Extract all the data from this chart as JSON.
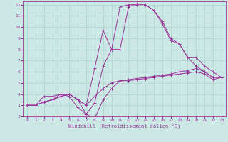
{
  "xlabel": "Windchill (Refroidissement éolien,°C)",
  "bg_color": "#cce8e4",
  "line_color": "#993399",
  "grid_color": "#aad4d0",
  "xlim": [
    -0.5,
    23.5
  ],
  "ylim": [
    2,
    12.3
  ],
  "xticks": [
    0,
    1,
    2,
    3,
    4,
    5,
    6,
    7,
    8,
    9,
    10,
    11,
    12,
    13,
    14,
    15,
    16,
    17,
    18,
    19,
    20,
    21,
    22,
    23
  ],
  "yticks": [
    2,
    3,
    4,
    5,
    6,
    7,
    8,
    9,
    10,
    11,
    12
  ],
  "lines": [
    {
      "x": [
        0,
        1,
        2,
        3,
        4,
        5,
        6,
        7,
        8,
        9,
        10,
        11,
        12,
        13,
        14,
        15,
        16,
        17,
        18,
        19,
        20,
        21,
        22,
        23
      ],
      "y": [
        3,
        3,
        3.8,
        3.8,
        4,
        3.8,
        2.8,
        2.2,
        3.2,
        6.5,
        8,
        8,
        11.8,
        12.1,
        12,
        11.5,
        10.5,
        9.0,
        8.5,
        7.3,
        6.5,
        6.0,
        5.5,
        5.5
      ]
    },
    {
      "x": [
        0,
        1,
        2,
        3,
        4,
        5,
        6,
        7,
        8,
        9,
        10,
        11,
        12,
        13,
        14,
        15,
        16,
        17,
        18,
        19,
        20,
        21,
        22,
        23
      ],
      "y": [
        3,
        3,
        3.3,
        3.5,
        3.8,
        4.0,
        3.5,
        3.0,
        3.8,
        4.5,
        5.0,
        5.2,
        5.3,
        5.4,
        5.5,
        5.6,
        5.7,
        5.8,
        6.0,
        6.1,
        6.3,
        6.0,
        5.5,
        5.5
      ]
    },
    {
      "x": [
        0,
        1,
        2,
        3,
        4,
        5,
        6,
        7,
        8,
        9,
        10,
        11,
        12,
        13,
        14,
        15,
        16,
        17,
        18,
        19,
        20,
        21,
        22,
        23
      ],
      "y": [
        3,
        3,
        3.3,
        3.5,
        3.8,
        4.0,
        3.5,
        2.2,
        1.8,
        3.5,
        4.5,
        5.2,
        5.2,
        5.3,
        5.4,
        5.5,
        5.6,
        5.7,
        5.8,
        5.9,
        6.0,
        5.8,
        5.3,
        5.5
      ]
    },
    {
      "x": [
        0,
        1,
        2,
        3,
        4,
        5,
        6,
        7,
        8,
        9,
        10,
        11,
        12,
        13,
        14,
        15,
        16,
        17,
        18,
        19,
        20,
        21,
        22,
        23
      ],
      "y": [
        3,
        3,
        3.3,
        3.5,
        4.0,
        4.0,
        3.5,
        3.0,
        6.3,
        9.7,
        8.0,
        11.8,
        12.0,
        12.0,
        12.0,
        11.5,
        10.3,
        8.8,
        8.5,
        7.3,
        7.3,
        6.5,
        6.0,
        5.5
      ]
    }
  ]
}
